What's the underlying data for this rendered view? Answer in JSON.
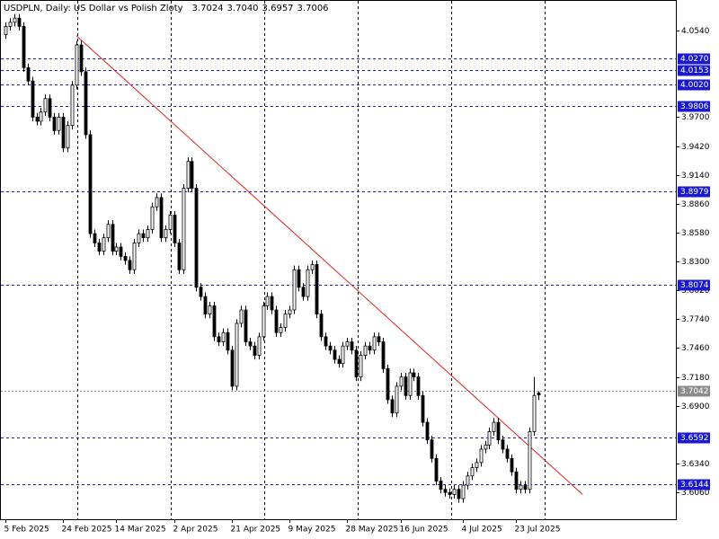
{
  "chart_data": {
    "type": "candlestick",
    "title": "USDPLN, Daily:  US Dollar vs Polish Zloty",
    "header_values": [
      "3.7024",
      "3.7040",
      "3.6957",
      "3.7006"
    ],
    "ylim": [
      3.58,
      4.0836
    ],
    "xlim": [
      -1,
      151
    ],
    "yticks": [
      {
        "value": 4.054,
        "label": "4.0540"
      },
      {
        "value": 3.97,
        "label": "3.9700"
      },
      {
        "value": 3.942,
        "label": "3.9420"
      },
      {
        "value": 3.914,
        "label": "3.9140"
      },
      {
        "value": 3.886,
        "label": "3.8860"
      },
      {
        "value": 3.858,
        "label": "3.8580"
      },
      {
        "value": 3.83,
        "label": "3.8300"
      },
      {
        "value": 3.802,
        "label": "3.8020"
      },
      {
        "value": 3.774,
        "label": "3.7740"
      },
      {
        "value": 3.746,
        "label": "3.7460"
      },
      {
        "value": 3.718,
        "label": "3.7180"
      },
      {
        "value": 3.69,
        "label": "3.6900"
      },
      {
        "value": 3.634,
        "label": "3.6340"
      },
      {
        "value": 3.606,
        "label": "3.6060"
      }
    ],
    "xticks": [
      {
        "value": 0,
        "label": "5 Feb 2025"
      },
      {
        "value": 13,
        "label": "24 Feb 2025"
      },
      {
        "value": 25,
        "label": "14 Mar 2025"
      },
      {
        "value": 38,
        "label": "2 Apr 2025"
      },
      {
        "value": 51,
        "label": "21 Apr 2025"
      },
      {
        "value": 64,
        "label": "9 May 2025"
      },
      {
        "value": 77,
        "label": "28 May 2025"
      },
      {
        "value": 89,
        "label": "16 Jun 2025"
      },
      {
        "value": 103,
        "label": "4 Jul 2025"
      },
      {
        "value": 115,
        "label": "23 Jul 2025"
      }
    ],
    "levels": [
      {
        "value": 4.027,
        "label": "4.0270"
      },
      {
        "value": 4.0153,
        "label": "4.0153"
      },
      {
        "value": 4.002,
        "label": "4.0020"
      },
      {
        "value": 3.9806,
        "label": "3.9806"
      },
      {
        "value": 3.8979,
        "label": "3.8979"
      },
      {
        "value": 3.8074,
        "label": "3.8074"
      },
      {
        "value": 3.6592,
        "label": "3.6592"
      },
      {
        "value": 3.6144,
        "label": "3.6144"
      }
    ],
    "level_color": "#1a1acc",
    "current_price": {
      "value": 3.7042,
      "label": "3.7042"
    },
    "trendline": {
      "color": "#e02020",
      "points": [
        [
          16,
          4.049
        ],
        [
          130,
          3.604
        ]
      ]
    },
    "open": [
      4.05,
      4.058,
      4.062,
      4.066,
      4.058,
      4.018,
      4.005,
      3.97,
      3.966,
      3.975,
      3.988,
      3.97,
      3.957,
      3.97,
      3.94,
      3.962,
      4.001,
      4.04,
      4.014,
      3.953,
      3.857,
      3.848,
      3.84,
      3.853,
      3.866,
      3.84,
      3.844,
      3.835,
      3.831,
      3.822,
      3.848,
      3.857,
      3.853,
      3.861,
      3.883,
      3.892,
      3.853,
      3.861,
      3.875,
      3.848,
      3.822,
      3.901,
      3.927,
      3.901,
      3.805,
      3.796,
      3.779,
      3.787,
      3.757,
      3.752,
      3.761,
      3.744,
      3.709,
      3.77,
      3.783,
      3.752,
      3.748,
      3.739,
      3.757,
      3.787,
      3.796,
      3.783,
      3.761,
      3.766,
      3.779,
      3.783,
      3.822,
      3.805,
      3.796,
      3.822,
      3.827,
      3.779,
      3.757,
      3.748,
      3.744,
      3.735,
      3.731,
      3.748,
      3.752,
      3.744,
      3.718,
      3.739,
      3.748,
      3.744,
      3.757,
      3.752,
      3.726,
      3.696,
      3.683,
      3.709,
      3.718,
      3.7,
      3.722,
      3.718,
      3.7,
      3.674,
      3.657,
      3.639,
      3.617,
      3.609,
      3.606,
      3.604,
      3.609,
      3.6,
      3.613,
      3.622,
      3.63,
      3.635,
      3.648,
      3.652,
      3.665,
      3.674,
      3.657,
      3.648,
      3.639,
      3.626,
      3.609,
      3.613,
      3.609,
      3.665,
      3.7024
    ],
    "high": [
      4.062,
      4.066,
      4.07,
      4.07,
      4.062,
      4.022,
      4.009,
      3.974,
      3.979,
      3.992,
      3.992,
      3.974,
      3.974,
      3.974,
      3.966,
      4.005,
      4.044,
      4.044,
      4.018,
      3.957,
      3.861,
      3.852,
      3.857,
      3.87,
      3.87,
      3.848,
      3.848,
      3.839,
      3.835,
      3.852,
      3.861,
      3.861,
      3.865,
      3.887,
      3.896,
      3.896,
      3.865,
      3.879,
      3.879,
      3.852,
      3.905,
      3.931,
      3.931,
      3.905,
      3.809,
      3.8,
      3.791,
      3.791,
      3.761,
      3.765,
      3.765,
      3.748,
      3.774,
      3.787,
      3.787,
      3.756,
      3.752,
      3.761,
      3.791,
      3.8,
      3.8,
      3.787,
      3.77,
      3.783,
      3.787,
      3.826,
      3.826,
      3.809,
      3.826,
      3.831,
      3.831,
      3.783,
      3.761,
      3.752,
      3.748,
      3.739,
      3.752,
      3.756,
      3.756,
      3.748,
      3.743,
      3.752,
      3.752,
      3.761,
      3.761,
      3.756,
      3.73,
      3.7,
      3.713,
      3.722,
      3.722,
      3.726,
      3.726,
      3.722,
      3.704,
      3.678,
      3.661,
      3.643,
      3.621,
      3.613,
      3.61,
      3.613,
      3.613,
      3.617,
      3.626,
      3.634,
      3.639,
      3.652,
      3.656,
      3.669,
      3.678,
      3.678,
      3.661,
      3.652,
      3.643,
      3.63,
      3.617,
      3.617,
      3.669,
      3.718,
      3.704
    ],
    "low": [
      4.046,
      4.054,
      4.058,
      4.054,
      4.014,
      4.001,
      3.966,
      3.962,
      3.962,
      3.971,
      3.966,
      3.953,
      3.953,
      3.936,
      3.936,
      3.958,
      3.997,
      4.01,
      3.949,
      3.853,
      3.844,
      3.836,
      3.836,
      3.849,
      3.836,
      3.836,
      3.831,
      3.827,
      3.818,
      3.818,
      3.844,
      3.849,
      3.849,
      3.857,
      3.879,
      3.849,
      3.849,
      3.857,
      3.844,
      3.818,
      3.818,
      3.897,
      3.897,
      3.801,
      3.792,
      3.775,
      3.775,
      3.753,
      3.748,
      3.748,
      3.74,
      3.705,
      3.705,
      3.766,
      3.748,
      3.744,
      3.735,
      3.735,
      3.753,
      3.783,
      3.779,
      3.757,
      3.757,
      3.762,
      3.775,
      3.779,
      3.801,
      3.792,
      3.792,
      3.818,
      3.775,
      3.753,
      3.744,
      3.74,
      3.731,
      3.727,
      3.727,
      3.744,
      3.74,
      3.714,
      3.714,
      3.735,
      3.74,
      3.74,
      3.748,
      3.722,
      3.692,
      3.679,
      3.679,
      3.705,
      3.696,
      3.696,
      3.714,
      3.696,
      3.67,
      3.653,
      3.635,
      3.613,
      3.605,
      3.602,
      3.6,
      3.6,
      3.596,
      3.596,
      3.609,
      3.618,
      3.626,
      3.631,
      3.644,
      3.648,
      3.661,
      3.653,
      3.644,
      3.635,
      3.622,
      3.605,
      3.605,
      3.605,
      3.605,
      3.661,
      3.6957
    ],
    "close": [
      4.058,
      4.062,
      4.066,
      4.058,
      4.018,
      4.005,
      3.97,
      3.966,
      3.975,
      3.988,
      3.97,
      3.957,
      3.97,
      3.94,
      3.962,
      4.001,
      4.04,
      4.014,
      3.953,
      3.857,
      3.848,
      3.84,
      3.853,
      3.866,
      3.84,
      3.844,
      3.835,
      3.831,
      3.822,
      3.848,
      3.857,
      3.853,
      3.861,
      3.883,
      3.892,
      3.853,
      3.861,
      3.875,
      3.848,
      3.822,
      3.901,
      3.927,
      3.901,
      3.805,
      3.796,
      3.779,
      3.787,
      3.757,
      3.752,
      3.761,
      3.744,
      3.709,
      3.77,
      3.783,
      3.752,
      3.748,
      3.739,
      3.757,
      3.787,
      3.796,
      3.783,
      3.761,
      3.766,
      3.779,
      3.783,
      3.822,
      3.805,
      3.796,
      3.822,
      3.827,
      3.779,
      3.757,
      3.748,
      3.744,
      3.735,
      3.731,
      3.748,
      3.752,
      3.744,
      3.718,
      3.739,
      3.748,
      3.744,
      3.757,
      3.752,
      3.726,
      3.696,
      3.683,
      3.709,
      3.718,
      3.7,
      3.722,
      3.718,
      3.7,
      3.674,
      3.657,
      3.639,
      3.617,
      3.609,
      3.606,
      3.604,
      3.609,
      3.6,
      3.613,
      3.622,
      3.63,
      3.635,
      3.648,
      3.652,
      3.665,
      3.674,
      3.657,
      3.648,
      3.639,
      3.626,
      3.609,
      3.613,
      3.609,
      3.665,
      3.7,
      3.7006
    ]
  }
}
